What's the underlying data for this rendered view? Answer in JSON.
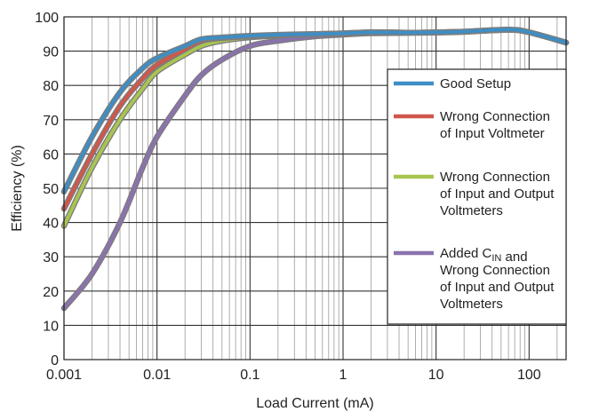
{
  "chart_data": {
    "type": "line",
    "xlabel": "Load Current (mA)",
    "ylabel": "Efficiency (%)",
    "xscale": "log",
    "xlim": [
      0.001,
      250
    ],
    "ylim": [
      0,
      100
    ],
    "grid": true,
    "legend_position": "right",
    "x_ticks": [
      0.001,
      0.01,
      0.1,
      1,
      10,
      100
    ],
    "x_tick_labels": [
      "0.001",
      "0.01",
      "0.1",
      "1",
      "10",
      "100"
    ],
    "y_ticks": [
      0,
      10,
      20,
      30,
      40,
      50,
      60,
      70,
      80,
      90,
      100
    ],
    "y_tick_labels": [
      "0",
      "10",
      "20",
      "30",
      "40",
      "50",
      "60",
      "70",
      "80",
      "90",
      "100"
    ],
    "series": [
      {
        "name": "Good Setup",
        "color": "#3e8ec4",
        "x": [
          0.001,
          0.002,
          0.004,
          0.007,
          0.01,
          0.02,
          0.03,
          0.05,
          0.1,
          0.2,
          0.5,
          1,
          2,
          5,
          10,
          20,
          60,
          100,
          250
        ],
        "y": [
          49,
          65,
          78,
          85,
          88,
          91.5,
          93.5,
          94,
          94.5,
          94.8,
          95,
          95.2,
          95.5,
          95.4,
          95.5,
          95.7,
          96.3,
          95.5,
          92.5
        ]
      },
      {
        "name": "Wrong Connection of Input Voltmeter",
        "color": "#d0574b",
        "x": [
          0.001,
          0.002,
          0.004,
          0.007,
          0.01,
          0.02,
          0.03,
          0.05,
          0.1,
          0.2,
          0.5,
          1,
          2,
          5,
          10,
          20,
          60,
          100,
          250
        ],
        "y": [
          44,
          60,
          74,
          82,
          86,
          90.5,
          93,
          93.8,
          94.3,
          94.6,
          94.9,
          95.1,
          95.5,
          95.4,
          95.5,
          95.7,
          96.2,
          95.5,
          92.5
        ]
      },
      {
        "name": "Wrong Connection of Input and Output Voltmeters",
        "color": "#a9c550",
        "x": [
          0.001,
          0.002,
          0.004,
          0.007,
          0.01,
          0.02,
          0.03,
          0.05,
          0.1,
          0.2,
          0.5,
          1,
          2,
          5,
          10,
          20,
          60,
          100,
          250
        ],
        "y": [
          39,
          56,
          70,
          79,
          84,
          89,
          91.5,
          93,
          94,
          94.5,
          95,
          95.2,
          95.5,
          95.4,
          95.5,
          95.7,
          96.2,
          95.5,
          92.5
        ]
      },
      {
        "name": "Added C_IN and Wrong Connection of Input and Output Voltmeters",
        "color": "#8a72ae",
        "x": [
          0.001,
          0.002,
          0.004,
          0.007,
          0.01,
          0.02,
          0.03,
          0.05,
          0.1,
          0.2,
          0.5,
          1,
          2,
          5,
          10,
          20,
          60,
          100,
          250
        ],
        "y": [
          15,
          25,
          40,
          56,
          65,
          77,
          83,
          87.5,
          91.5,
          93,
          94.3,
          94.8,
          95.2,
          95.3,
          95.4,
          95.6,
          96.2,
          95.5,
          92.5
        ]
      }
    ],
    "legend_lines": [
      [
        "Good Setup"
      ],
      [
        "Wrong Connection",
        "of Input Voltmeter"
      ],
      [
        "Wrong Connection",
        "of Input and Output",
        "Voltmeters"
      ],
      [
        "Added C|IN| and",
        "Wrong Connection",
        "of Input and Output",
        "Voltmeters"
      ]
    ]
  }
}
